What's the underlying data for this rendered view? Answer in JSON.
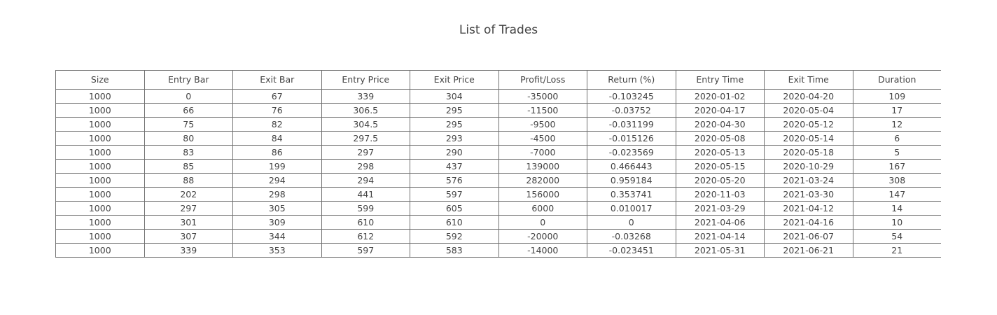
{
  "chart_data": {
    "type": "table",
    "title": "List of Trades",
    "columns": [
      "Size",
      "Entry Bar",
      "Exit Bar",
      "Entry Price",
      "Exit Price",
      "Profit/Loss",
      "Return (%)",
      "Entry Time",
      "Exit Time",
      "Duration"
    ],
    "rows": [
      [
        "1000",
        "0",
        "67",
        "339",
        "304",
        "-35000",
        "-0.103245",
        "2020-01-02",
        "2020-04-20",
        "109"
      ],
      [
        "1000",
        "66",
        "76",
        "306.5",
        "295",
        "-11500",
        "-0.03752",
        "2020-04-17",
        "2020-05-04",
        "17"
      ],
      [
        "1000",
        "75",
        "82",
        "304.5",
        "295",
        "-9500",
        "-0.031199",
        "2020-04-30",
        "2020-05-12",
        "12"
      ],
      [
        "1000",
        "80",
        "84",
        "297.5",
        "293",
        "-4500",
        "-0.015126",
        "2020-05-08",
        "2020-05-14",
        "6"
      ],
      [
        "1000",
        "83",
        "86",
        "297",
        "290",
        "-7000",
        "-0.023569",
        "2020-05-13",
        "2020-05-18",
        "5"
      ],
      [
        "1000",
        "85",
        "199",
        "298",
        "437",
        "139000",
        "0.466443",
        "2020-05-15",
        "2020-10-29",
        "167"
      ],
      [
        "1000",
        "88",
        "294",
        "294",
        "576",
        "282000",
        "0.959184",
        "2020-05-20",
        "2021-03-24",
        "308"
      ],
      [
        "1000",
        "202",
        "298",
        "441",
        "597",
        "156000",
        "0.353741",
        "2020-11-03",
        "2021-03-30",
        "147"
      ],
      [
        "1000",
        "297",
        "305",
        "599",
        "605",
        "6000",
        "0.010017",
        "2021-03-29",
        "2021-04-12",
        "14"
      ],
      [
        "1000",
        "301",
        "309",
        "610",
        "610",
        "0",
        "0",
        "2021-04-06",
        "2021-04-16",
        "10"
      ],
      [
        "1000",
        "307",
        "344",
        "612",
        "592",
        "-20000",
        "-0.03268",
        "2021-04-14",
        "2021-06-07",
        "54"
      ],
      [
        "1000",
        "339",
        "353",
        "597",
        "583",
        "-14000",
        "-0.023451",
        "2021-05-31",
        "2021-06-21",
        "21"
      ]
    ]
  }
}
